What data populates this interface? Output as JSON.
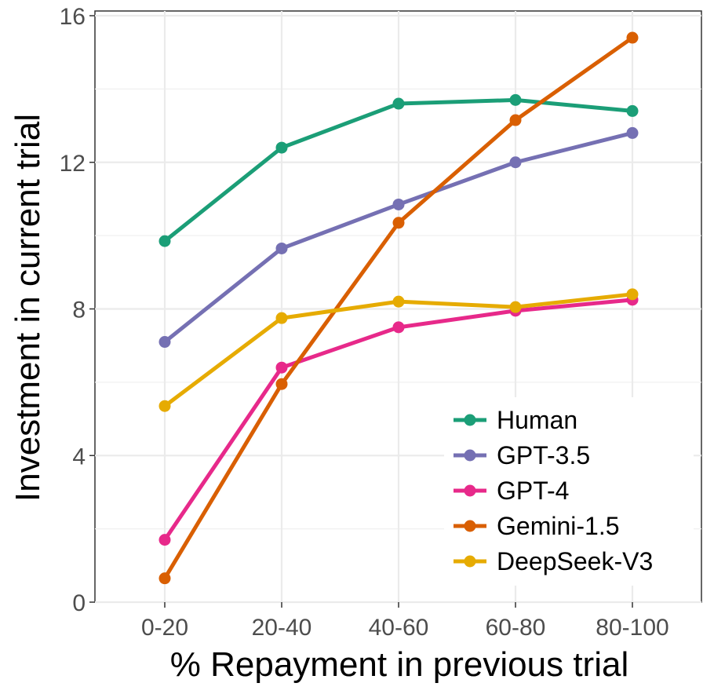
{
  "chart_data": {
    "type": "line",
    "title": "",
    "xlabel": "% Repayment in previous trial",
    "ylabel": "Investment in current trial",
    "categories": [
      "0-20",
      "20-40",
      "40-60",
      "60-80",
      "80-100"
    ],
    "ylim": [
      0,
      16
    ],
    "yticks": [
      "0",
      "4",
      "8",
      "12",
      "16"
    ],
    "grid": true,
    "legend_position": "bottom-right",
    "series": [
      {
        "name": "Human",
        "color": "#1b9e77",
        "values": [
          9.85,
          12.4,
          13.6,
          13.7,
          13.4
        ]
      },
      {
        "name": "GPT-3.5",
        "color": "#7570b3",
        "values": [
          7.1,
          9.65,
          10.85,
          12.0,
          12.8
        ]
      },
      {
        "name": "GPT-4",
        "color": "#e7298a",
        "values": [
          1.7,
          6.4,
          7.5,
          7.95,
          8.25
        ]
      },
      {
        "name": "Gemini-1.5",
        "color": "#d95f02",
        "values": [
          0.65,
          5.95,
          10.35,
          13.15,
          15.4
        ]
      },
      {
        "name": "DeepSeek-V3",
        "color": "#e6ab02",
        "values": [
          5.35,
          7.75,
          8.2,
          8.05,
          8.4
        ]
      }
    ]
  }
}
